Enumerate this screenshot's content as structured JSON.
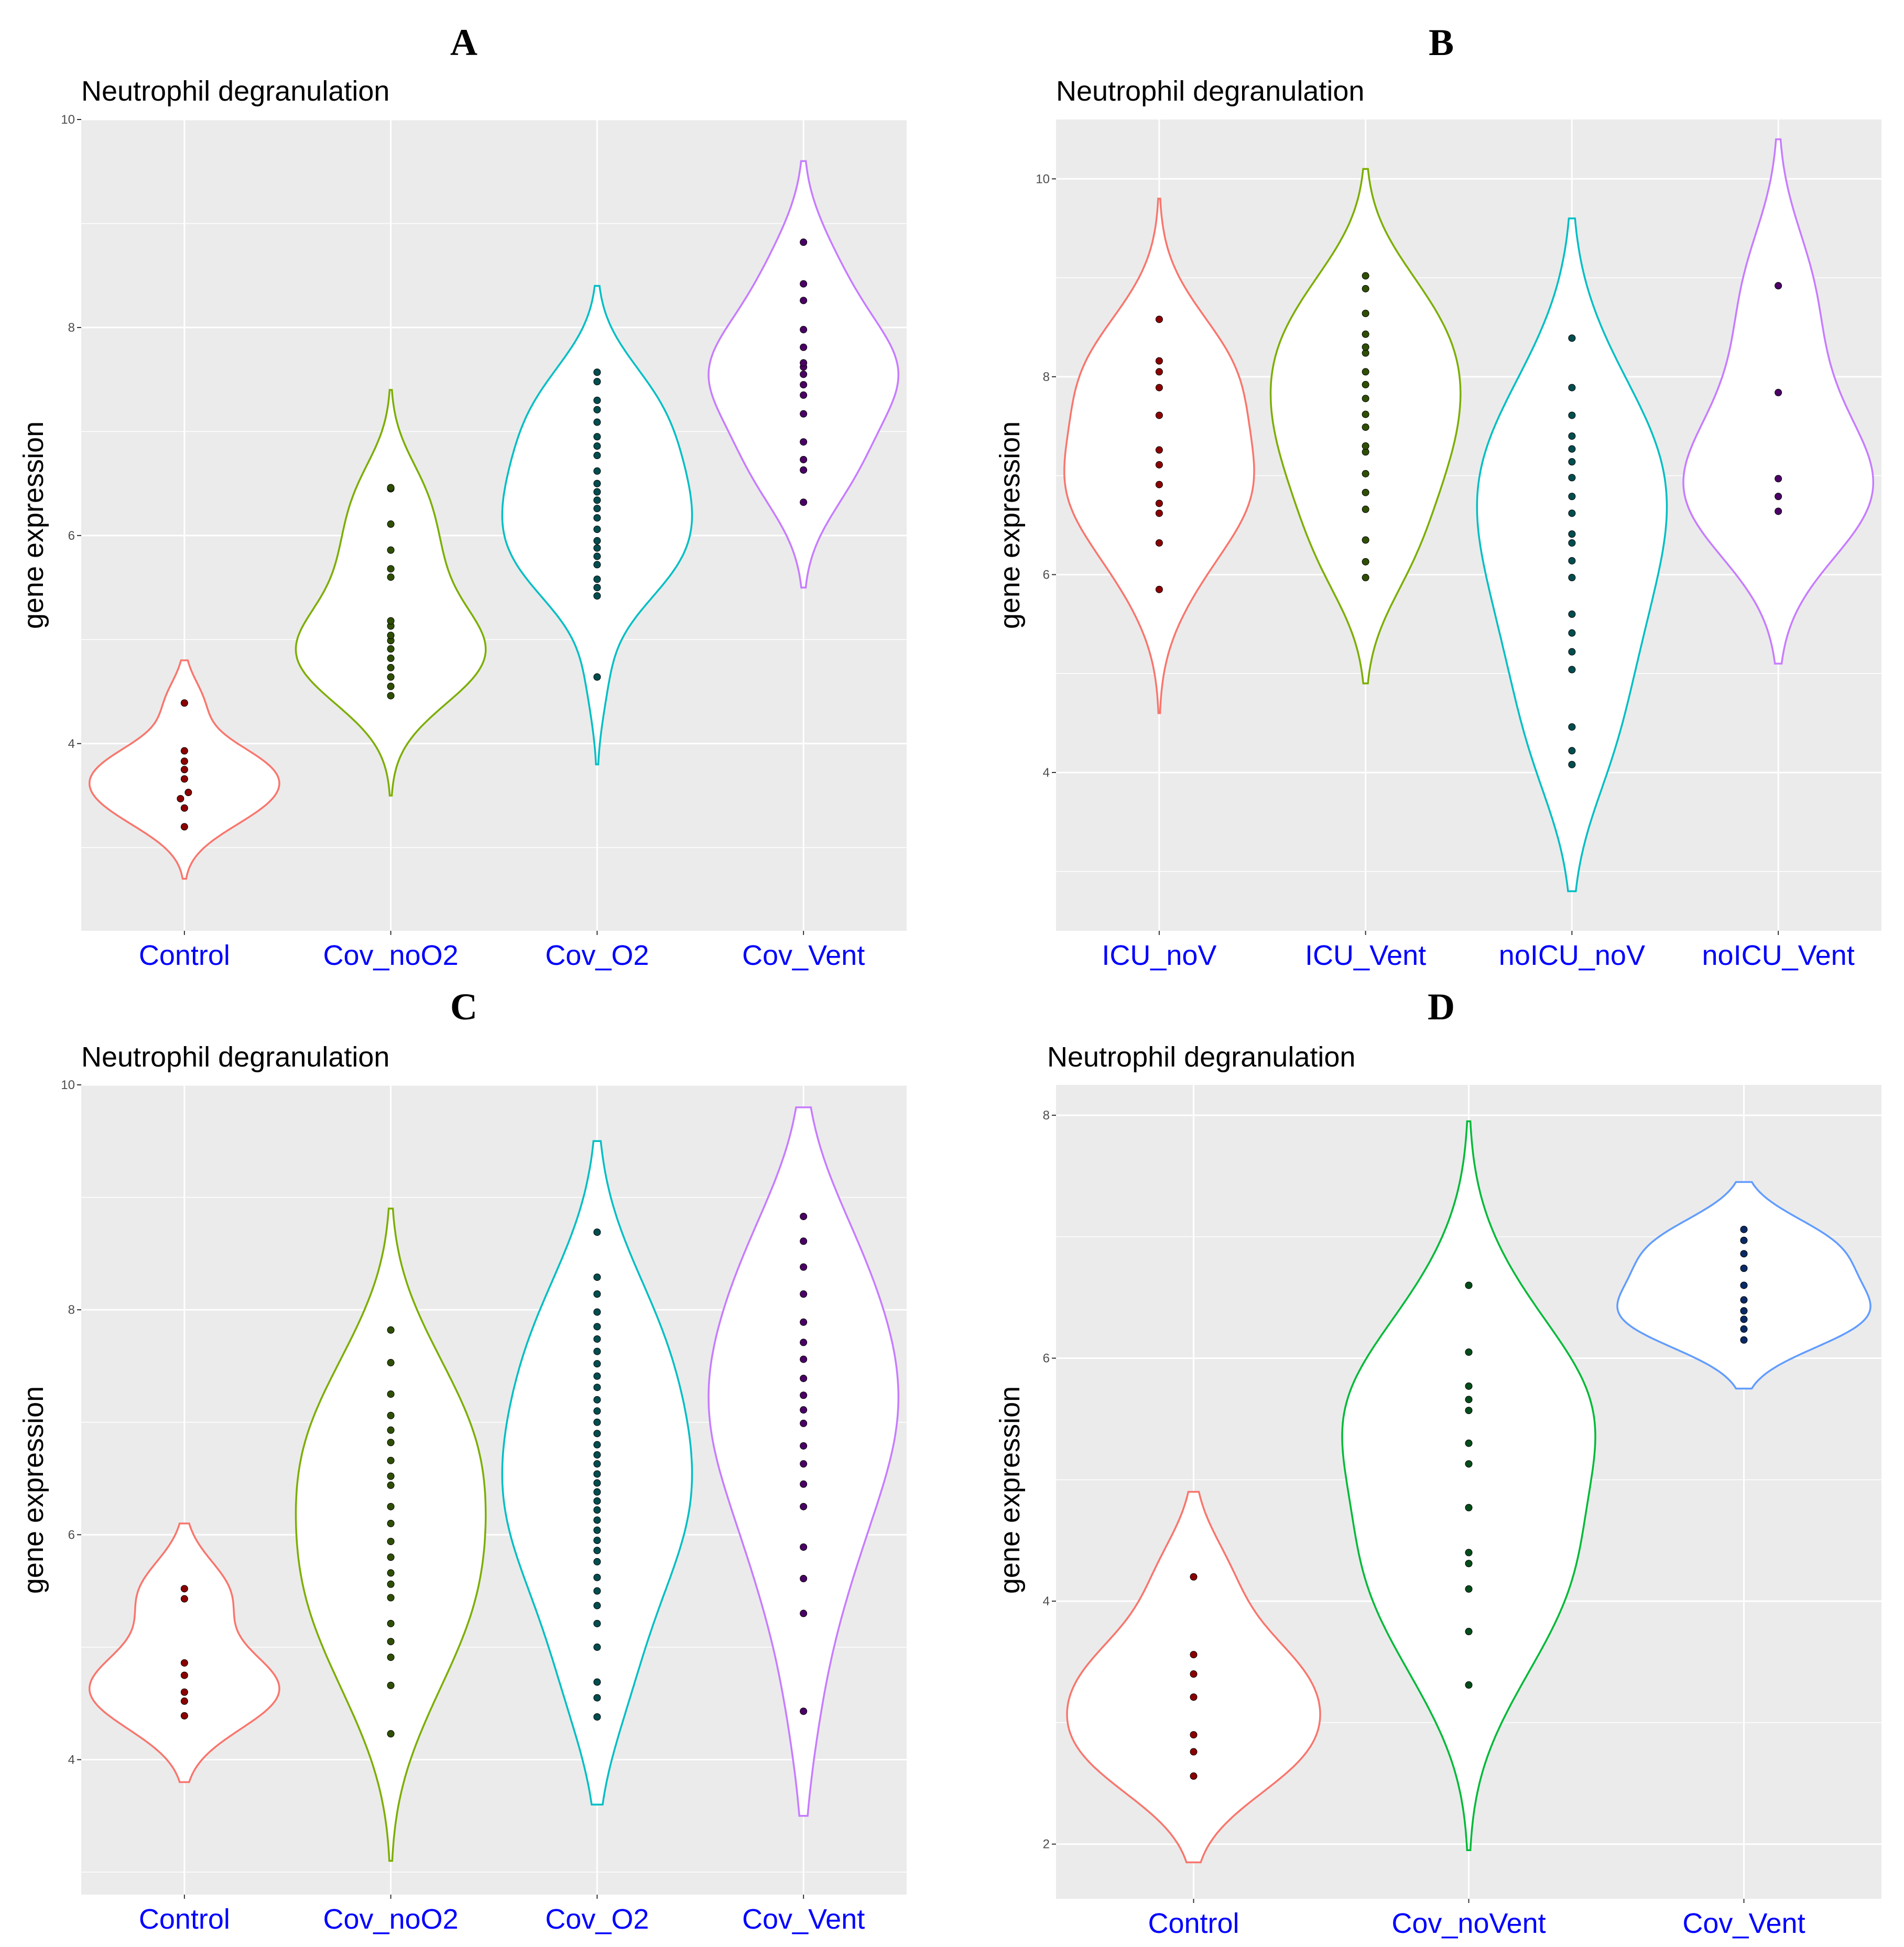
{
  "figure": {
    "y_label": "gene expression"
  },
  "chart_data": [
    {
      "type": "violin",
      "panel": "A",
      "title": "Neutrophil degranulation",
      "ylabel": "gene expression",
      "ylim": [
        2.2,
        10.0
      ],
      "yticks": [
        4,
        6,
        8,
        10
      ],
      "categories": [
        "Control",
        "Cov_noO2",
        "Cov_O2",
        "Cov_Vent"
      ],
      "colors": [
        "#f8766d",
        "#7cae00",
        "#00bfc4",
        "#c77cff"
      ],
      "dot_colors": [
        "#8b0000",
        "#2f4f00",
        "#004d4f",
        "#4b0066"
      ],
      "series": [
        {
          "name": "Control",
          "range": [
            2.7,
            4.8
          ],
          "values": [
            3.2,
            3.38,
            3.47,
            3.53,
            3.66,
            3.75,
            3.83,
            3.93,
            4.39
          ]
        },
        {
          "name": "Cov_noO2",
          "range": [
            3.5,
            7.4
          ],
          "values": [
            4.46,
            4.55,
            4.64,
            4.73,
            4.82,
            4.91,
            4.99,
            5.04,
            5.13,
            5.18,
            5.6,
            5.68,
            5.86,
            6.11,
            6.45,
            6.46
          ]
        },
        {
          "name": "Cov_O2",
          "range": [
            3.8,
            8.4
          ],
          "values": [
            4.64,
            5.42,
            5.5,
            5.58,
            5.72,
            5.8,
            5.88,
            5.95,
            6.06,
            6.17,
            6.26,
            6.34,
            6.42,
            6.5,
            6.62,
            6.77,
            6.86,
            6.95,
            7.09,
            7.21,
            7.3,
            7.48,
            7.57
          ]
        },
        {
          "name": "Cov_Vent",
          "range": [
            5.5,
            9.6
          ],
          "values": [
            6.32,
            6.63,
            6.73,
            6.9,
            7.17,
            7.35,
            7.45,
            7.55,
            7.62,
            7.66,
            7.81,
            7.98,
            8.26,
            8.42,
            8.82
          ]
        }
      ]
    },
    {
      "type": "violin",
      "panel": "B",
      "title": "Neutrophil degranulation",
      "ylabel": "gene expression",
      "ylim": [
        2.4,
        10.6
      ],
      "yticks": [
        4,
        6,
        8,
        10
      ],
      "categories": [
        "ICU_noV",
        "ICU_Vent",
        "noICU_noV",
        "noICU_Vent"
      ],
      "colors": [
        "#f8766d",
        "#7cae00",
        "#00bfc4",
        "#c77cff"
      ],
      "dot_colors": [
        "#8b0000",
        "#2f4f00",
        "#004d4f",
        "#4b0066"
      ],
      "series": [
        {
          "name": "ICU_noV",
          "range": [
            4.6,
            9.8
          ],
          "values": [
            5.85,
            6.32,
            6.62,
            6.72,
            6.91,
            7.11,
            7.26,
            7.61,
            7.89,
            8.05,
            8.16,
            8.58
          ]
        },
        {
          "name": "ICU_Vent",
          "range": [
            4.9,
            10.1
          ],
          "values": [
            5.97,
            6.13,
            6.35,
            6.66,
            6.83,
            7.02,
            7.24,
            7.3,
            7.49,
            7.62,
            7.78,
            7.92,
            8.05,
            8.24,
            8.3,
            8.43,
            8.64,
            8.89,
            9.02
          ]
        },
        {
          "name": "noICU_noV",
          "range": [
            2.8,
            9.6
          ],
          "values": [
            4.08,
            4.22,
            4.46,
            5.04,
            5.22,
            5.41,
            5.6,
            5.97,
            6.14,
            6.32,
            6.41,
            6.62,
            6.79,
            6.98,
            7.14,
            7.27,
            7.4,
            7.61,
            7.89,
            8.39
          ]
        },
        {
          "name": "noICU_Vent",
          "range": [
            5.1,
            10.4
          ],
          "values": [
            6.64,
            6.79,
            6.97,
            7.84,
            8.92
          ]
        }
      ]
    },
    {
      "type": "violin",
      "panel": "C",
      "title": "Neutrophil degranulation",
      "ylabel": "gene expression",
      "ylim": [
        2.8,
        10.0
      ],
      "yticks": [
        4,
        6,
        8,
        10
      ],
      "categories": [
        "Control",
        "Cov_noO2",
        "Cov_O2",
        "Cov_Vent"
      ],
      "colors": [
        "#f8766d",
        "#7cae00",
        "#00bfc4",
        "#c77cff"
      ],
      "dot_colors": [
        "#8b0000",
        "#2f4f00",
        "#004d4f",
        "#4b0066"
      ],
      "series": [
        {
          "name": "Control",
          "range": [
            3.8,
            6.1
          ],
          "values": [
            4.39,
            4.52,
            4.6,
            4.75,
            4.86,
            5.43,
            5.52
          ]
        },
        {
          "name": "Cov_noO2",
          "range": [
            3.1,
            8.9
          ],
          "values": [
            4.23,
            4.66,
            4.91,
            5.05,
            5.21,
            5.44,
            5.56,
            5.66,
            5.8,
            5.94,
            6.1,
            6.25,
            6.44,
            6.52,
            6.66,
            6.82,
            6.93,
            7.06,
            7.25,
            7.53,
            7.82
          ]
        },
        {
          "name": "Cov_O2",
          "range": [
            3.6,
            9.5
          ],
          "values": [
            4.38,
            4.55,
            4.69,
            5.0,
            5.21,
            5.37,
            5.5,
            5.62,
            5.76,
            5.86,
            5.95,
            6.04,
            6.13,
            6.22,
            6.3,
            6.38,
            6.46,
            6.54,
            6.63,
            6.71,
            6.8,
            6.9,
            7.0,
            7.1,
            7.2,
            7.31,
            7.41,
            7.52,
            7.63,
            7.74,
            7.85,
            7.98,
            8.14,
            8.29,
            8.69
          ]
        },
        {
          "name": "Cov_Vent",
          "range": [
            3.5,
            9.8
          ],
          "values": [
            4.43,
            5.3,
            5.61,
            5.89,
            6.25,
            6.45,
            6.63,
            6.79,
            6.99,
            7.11,
            7.24,
            7.39,
            7.56,
            7.71,
            7.89,
            8.14,
            8.38,
            8.61,
            8.83
          ]
        }
      ]
    },
    {
      "type": "violin",
      "panel": "D",
      "title": "Neutrophil degranulation",
      "ylabel": "gene expression",
      "ylim": [
        1.55,
        8.25
      ],
      "yticks": [
        2,
        4,
        6,
        8
      ],
      "categories": [
        "Control",
        "Cov_noVent",
        "Cov_Vent"
      ],
      "colors": [
        "#f8766d",
        "#00ba38",
        "#619cff"
      ],
      "dot_colors": [
        "#8b0000",
        "#004d1a",
        "#0a2a66"
      ],
      "series": [
        {
          "name": "Control",
          "range": [
            1.85,
            4.9
          ],
          "values": [
            2.56,
            2.76,
            2.9,
            3.21,
            3.4,
            3.56,
            4.2
          ]
        },
        {
          "name": "Cov_noVent",
          "range": [
            1.95,
            7.95
          ],
          "values": [
            3.31,
            3.75,
            4.1,
            4.31,
            4.4,
            4.77,
            5.13,
            5.3,
            5.57,
            5.66,
            5.77,
            6.05,
            6.6
          ]
        },
        {
          "name": "Cov_Vent",
          "range": [
            5.75,
            7.45
          ],
          "values": [
            6.15,
            6.24,
            6.32,
            6.39,
            6.48,
            6.6,
            6.74,
            6.86,
            6.97,
            7.06
          ]
        }
      ]
    }
  ]
}
